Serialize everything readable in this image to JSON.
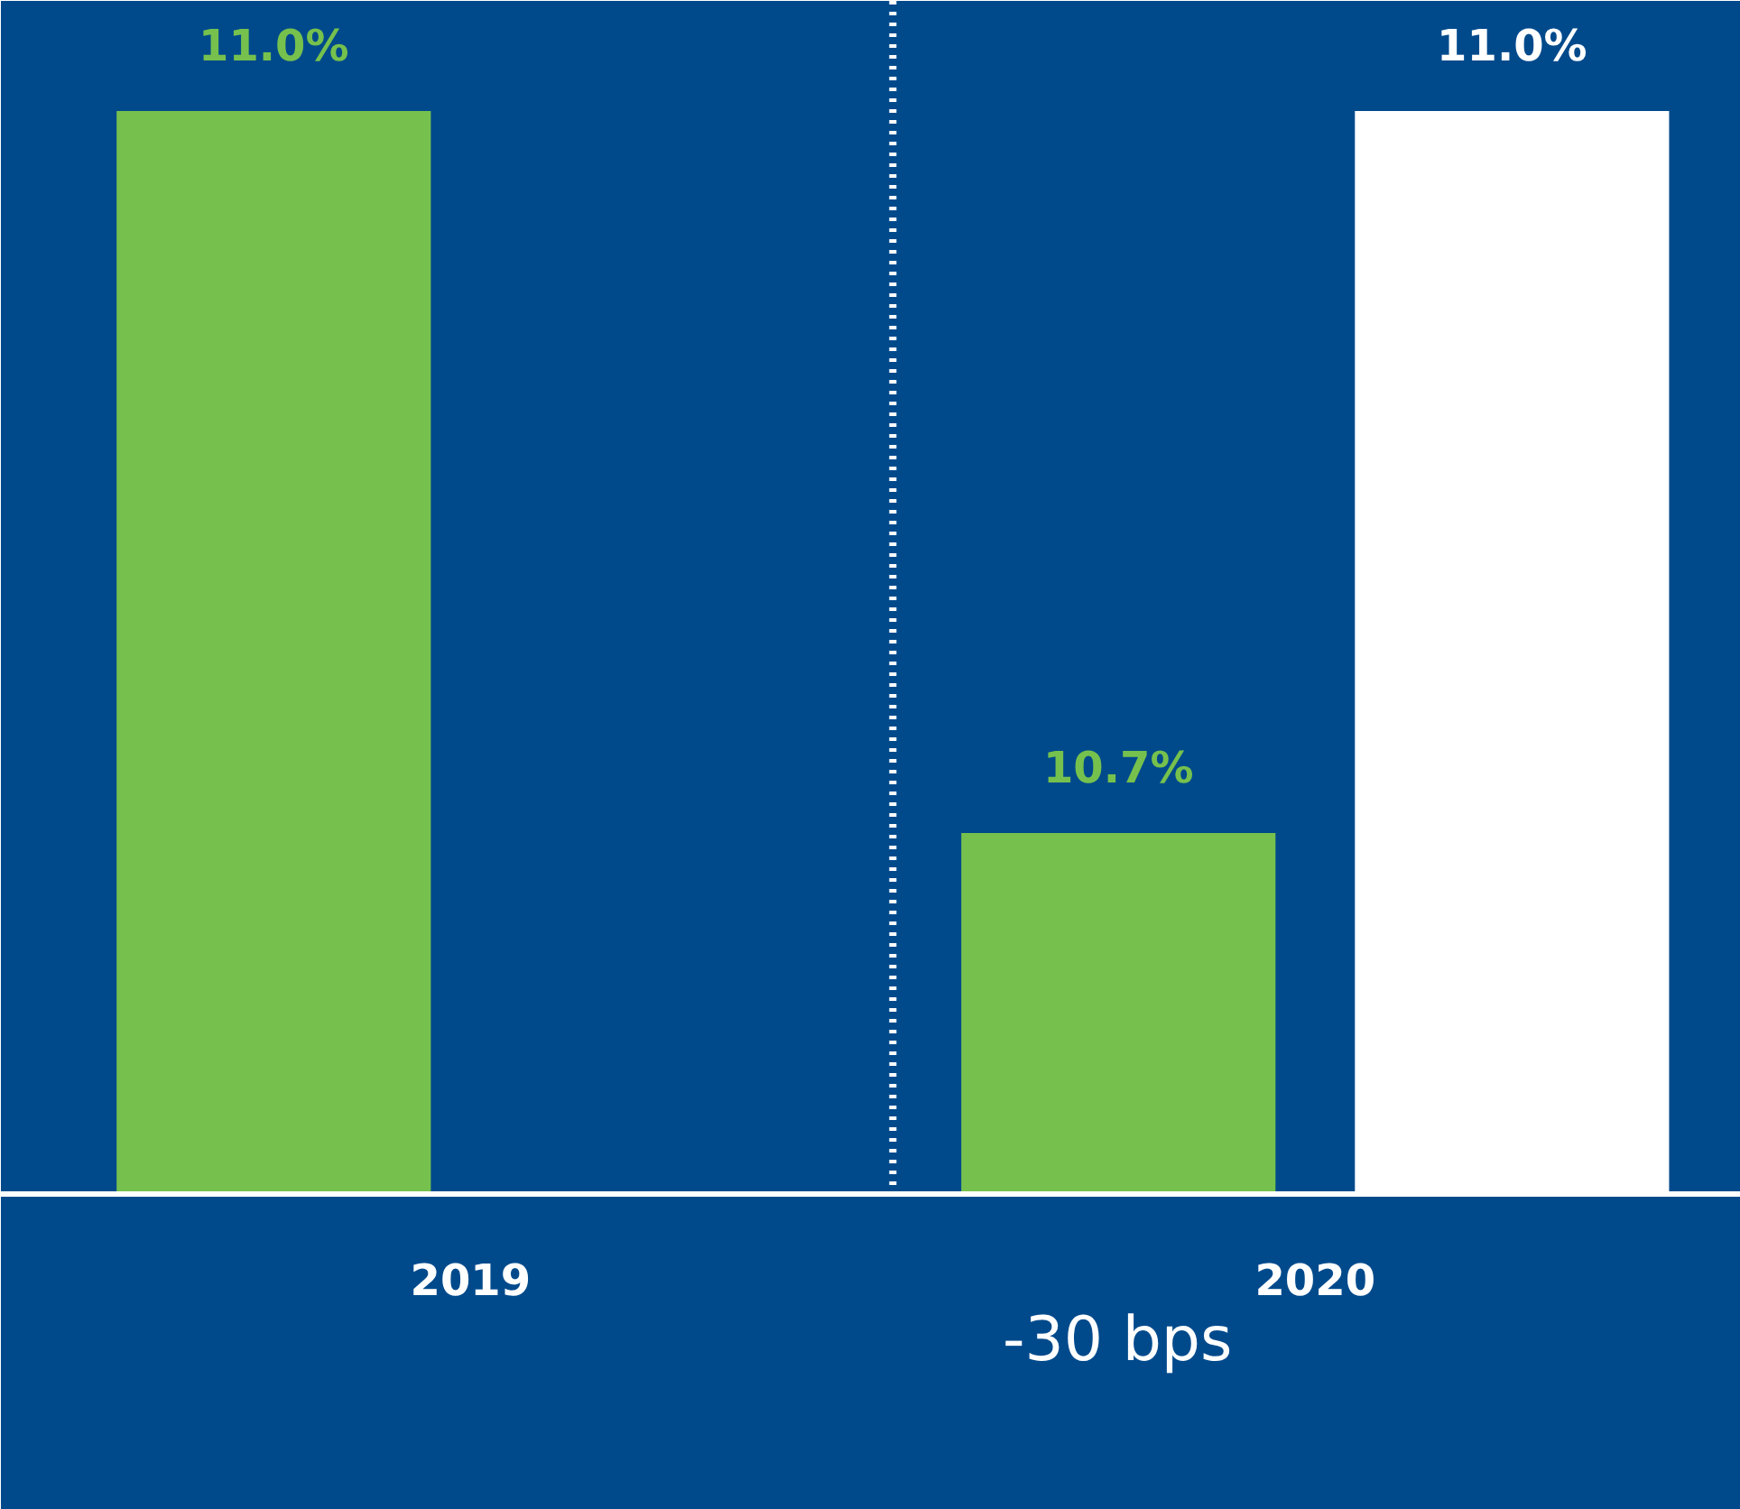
{
  "chart_data": {
    "type": "bar",
    "categories": [
      "2019",
      "2020"
    ],
    "series": [
      {
        "color": "#76c14d",
        "values": [
          11.0,
          10.7
        ],
        "value_labels": [
          "11.0%",
          "10.7%"
        ]
      },
      {
        "color": "#ffffff",
        "values": [
          null,
          11.0
        ],
        "value_labels": [
          null,
          "11.0%"
        ]
      }
    ],
    "ylim": [
      10.55,
      11.0
    ],
    "tick_labels": "x",
    "grid": false,
    "annotations": [
      "-30 bps"
    ]
  }
}
